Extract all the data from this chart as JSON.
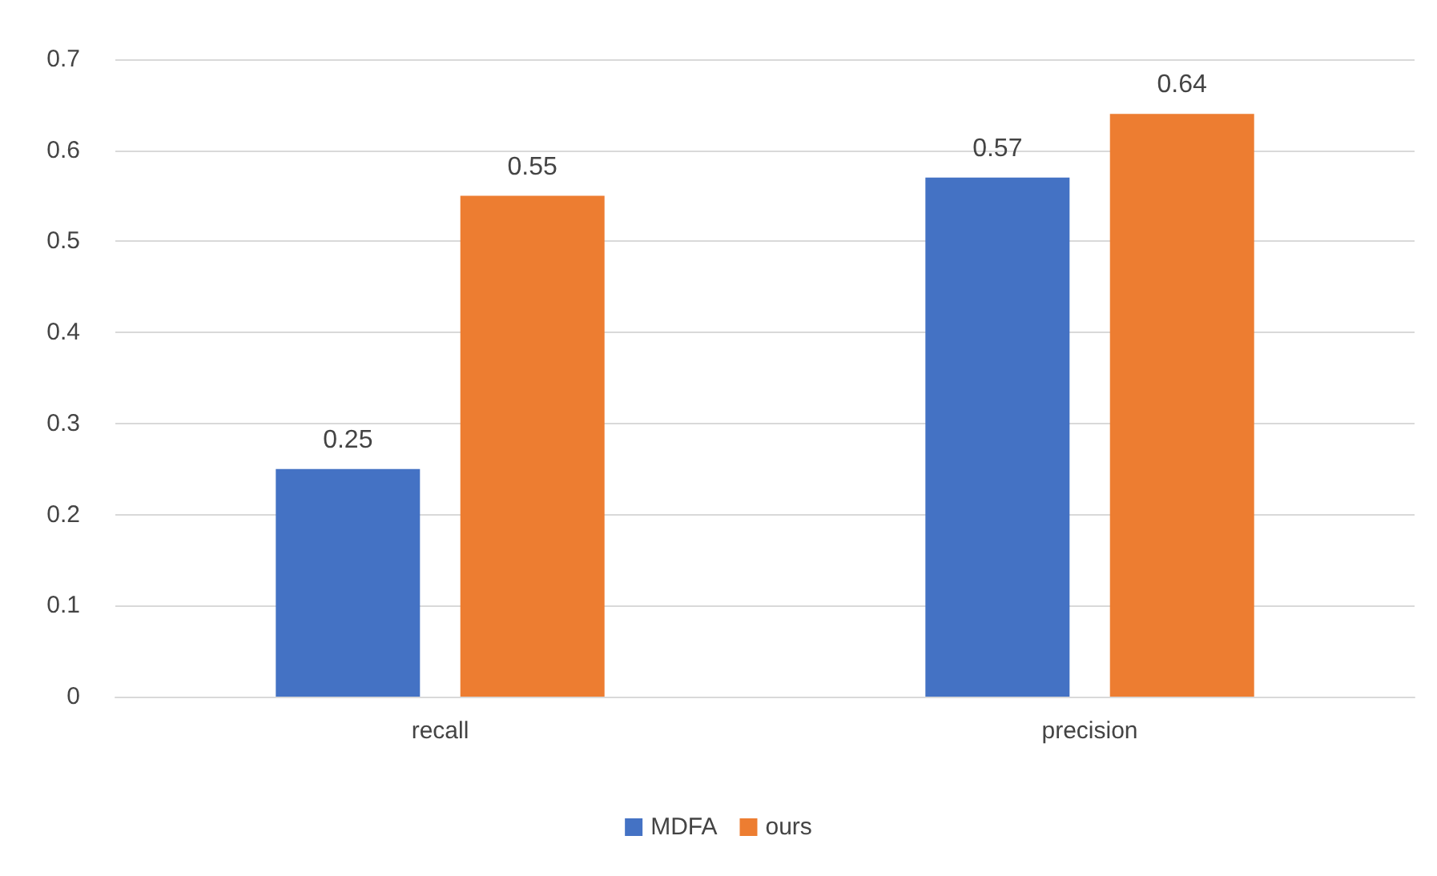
{
  "chart_data": {
    "type": "bar",
    "categories": [
      "recall",
      "precision"
    ],
    "series": [
      {
        "name": "MDFA",
        "color": "#4472c4",
        "values": [
          0.25,
          0.57
        ]
      },
      {
        "name": "ours",
        "color": "#ed7d31",
        "values": [
          0.55,
          0.64
        ]
      }
    ],
    "ylim": [
      0,
      0.7
    ],
    "yticks": [
      0,
      0.1,
      0.2,
      0.3,
      0.4,
      0.5,
      0.6,
      0.7
    ],
    "grid": "y",
    "legend": "bottom",
    "data_labels": true
  }
}
